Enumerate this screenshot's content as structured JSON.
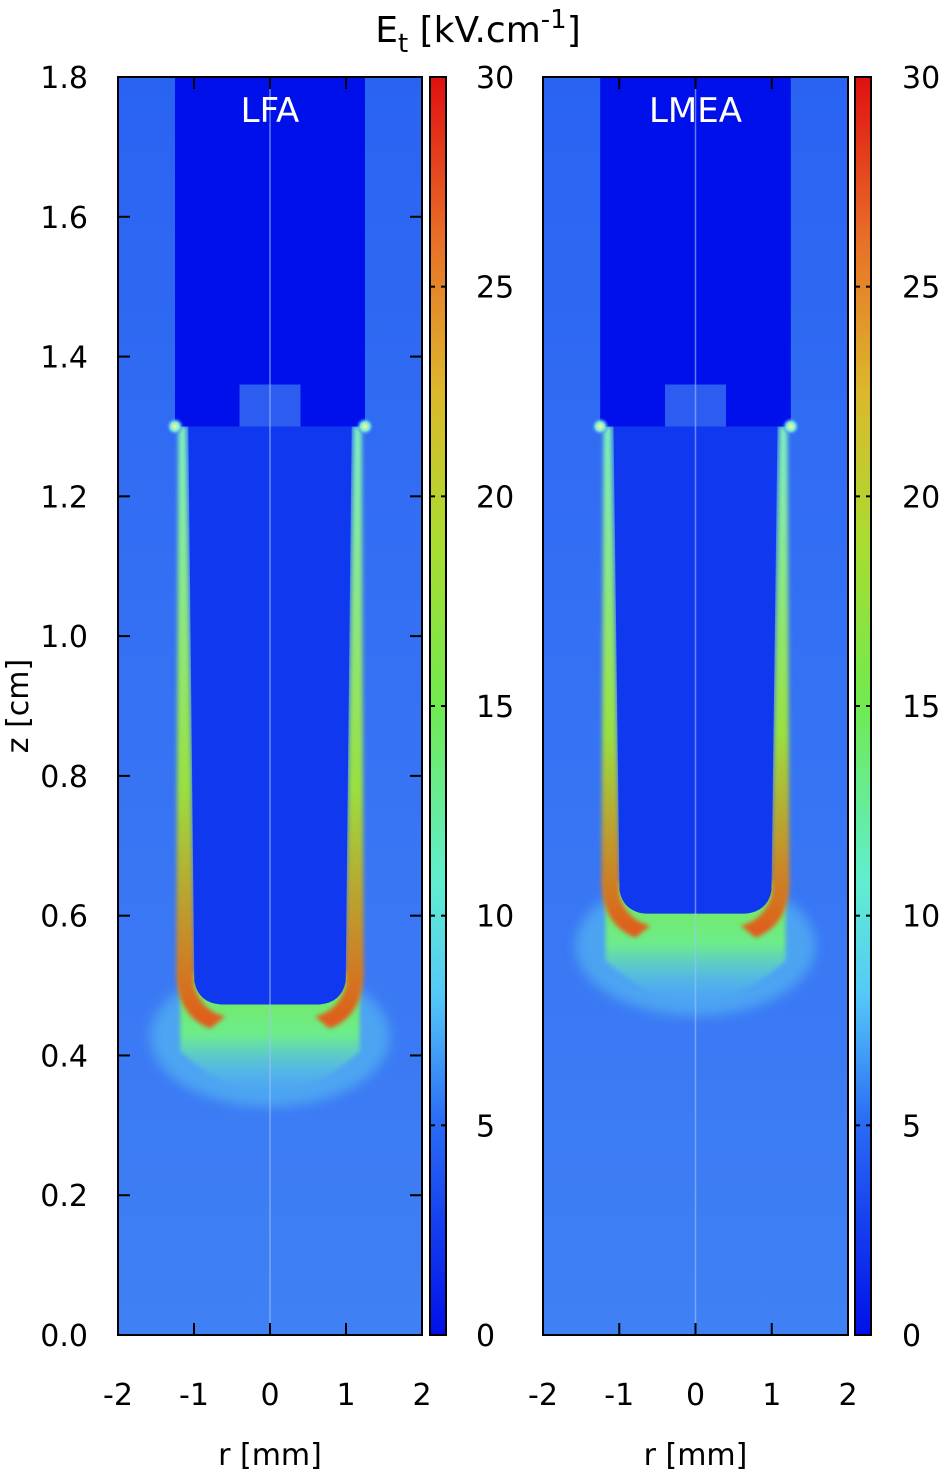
{
  "figure": {
    "title_main": "E",
    "title_sub": "t",
    "title_unit": " [kV.cm",
    "title_exp": "-1",
    "title_close": "]",
    "ylabel": "z [cm]"
  },
  "chart_data": [
    {
      "type": "heatmap",
      "panel_label": "LFA",
      "xlabel": "r [mm]",
      "ylabel": "z [cm]",
      "xlim": [
        -2,
        2
      ],
      "ylim": [
        0,
        1.8
      ],
      "x_ticks": [
        "-2",
        "-1",
        "0",
        "1",
        "2"
      ],
      "x_tick_values": [
        -2,
        -1,
        0,
        1,
        2
      ],
      "y_ticks": [
        "0.0",
        "0.2",
        "0.4",
        "0.6",
        "0.8",
        "1.0",
        "1.2",
        "1.4",
        "1.6",
        "1.8"
      ],
      "y_tick_values": [
        0,
        0.2,
        0.4,
        0.6,
        0.8,
        1.0,
        1.2,
        1.4,
        1.6,
        1.8
      ],
      "colorbar": {
        "range": [
          0,
          30
        ],
        "ticks": [
          "0",
          "5",
          "10",
          "15",
          "20",
          "25",
          "30"
        ],
        "tick_values": [
          0,
          5,
          10,
          15,
          20,
          25,
          30
        ],
        "colors": [
          "#0018f0",
          "#1f6cf5",
          "#5cd8f8",
          "#5ae88a",
          "#8ee03a",
          "#c8d030",
          "#e88a28",
          "#e02c10"
        ]
      },
      "field": {
        "electrode": {
          "r_halfwidth": 1.25,
          "z_bottom": 1.3,
          "notch_halfwidth": 0.4,
          "notch_top": 1.36
        },
        "streamer": {
          "r_halfwidth": 1.18,
          "head_z": 0.47,
          "head_glow_z": 0.42
        },
        "axis_r": 0,
        "background_value": 5
      }
    },
    {
      "type": "heatmap",
      "panel_label": "LMEA",
      "xlabel": "r [mm]",
      "ylabel": "",
      "xlim": [
        -2,
        2
      ],
      "ylim": [
        0,
        1.8
      ],
      "x_ticks": [
        "-2",
        "-1",
        "0",
        "1",
        "2"
      ],
      "x_tick_values": [
        -2,
        -1,
        0,
        1,
        2
      ],
      "y_ticks": [],
      "y_tick_values": [],
      "colorbar": {
        "range": [
          0,
          30
        ],
        "ticks": [
          "0",
          "5",
          "10",
          "15",
          "20",
          "25",
          "30"
        ],
        "tick_values": [
          0,
          5,
          10,
          15,
          20,
          25,
          30
        ],
        "colors": [
          "#0018f0",
          "#1f6cf5",
          "#5cd8f8",
          "#5ae88a",
          "#8ee03a",
          "#c8d030",
          "#e88a28",
          "#e02c10"
        ]
      },
      "field": {
        "electrode": {
          "r_halfwidth": 1.25,
          "z_bottom": 1.3,
          "notch_halfwidth": 0.4,
          "notch_top": 1.36
        },
        "streamer": {
          "r_halfwidth": 1.18,
          "head_z": 0.6,
          "head_glow_z": 0.55
        },
        "axis_r": 0,
        "background_value": 5
      }
    }
  ]
}
